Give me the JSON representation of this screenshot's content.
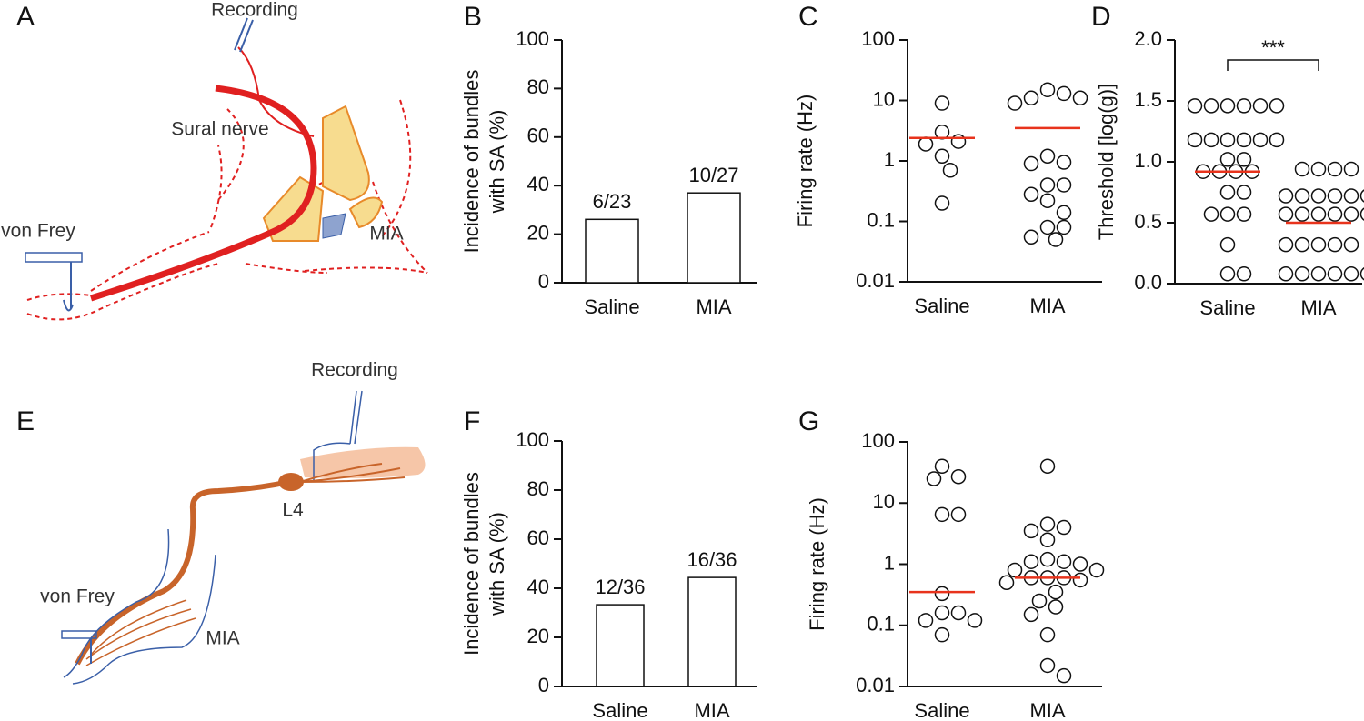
{
  "diagrams": [
    {
      "letter": "A",
      "recording": "Recording",
      "nerve": "Sural nerve",
      "stimulus": "von Frey",
      "injection": "MIA"
    },
    {
      "letter": "E",
      "recording": "Recording",
      "ganglion": "L4",
      "stimulus": "von Frey",
      "injection": "MIA"
    }
  ],
  "chart_data": [
    {
      "type": "bar",
      "letter": "B",
      "ylabel": [
        "Incidence of bundles",
        "with SA (%)"
      ],
      "categories": [
        "Saline",
        "MIA"
      ],
      "values": [
        26.1,
        37.0
      ],
      "value_labels": [
        "6/23",
        "10/27"
      ],
      "color": "#ffffff",
      "ylim": [
        0,
        100
      ],
      "yticks": [
        0,
        20,
        40,
        60,
        80,
        100
      ]
    },
    {
      "type": "scatter",
      "letter": "C",
      "ylabel": [
        "Firing rate (Hz)"
      ],
      "log": true,
      "categories": [
        "Saline",
        "MIA"
      ],
      "groups": [
        {
          "values": [
            9,
            3,
            2.1,
            1.9,
            1.2,
            0.7,
            0.2
          ],
          "mean": 2.4
        },
        {
          "values": [
            15,
            13,
            11,
            11,
            9,
            1.2,
            0.95,
            0.9,
            0.4,
            0.4,
            0.28,
            0.22,
            0.14,
            0.08,
            0.08,
            0.055,
            0.05
          ],
          "mean": 3.5
        }
      ],
      "mean_color": "#e8331c",
      "ylim": [
        0.01,
        100
      ],
      "yticks": [
        0.01,
        0.1,
        1,
        10,
        100
      ]
    },
    {
      "type": "scatter",
      "letter": "D",
      "ylabel": [
        "Threshold [log(g)]"
      ],
      "categories": [
        "Saline",
        "MIA"
      ],
      "groups": [
        {
          "values": [
            1.46,
            1.46,
            1.46,
            1.46,
            1.46,
            1.46,
            1.18,
            1.18,
            1.18,
            1.18,
            1.18,
            1.18,
            1.02,
            1.02,
            0.92,
            0.92,
            0.92,
            0.92,
            0.75,
            0.75,
            0.57,
            0.57,
            0.57,
            0.32,
            0.08,
            0.08
          ],
          "mean": 0.92
        },
        {
          "values": [
            0.94,
            0.94,
            0.94,
            0.94,
            0.72,
            0.72,
            0.72,
            0.72,
            0.72,
            0.72,
            0.57,
            0.57,
            0.57,
            0.57,
            0.57,
            0.57,
            0.32,
            0.32,
            0.32,
            0.32,
            0.32,
            0.08,
            0.08,
            0.08,
            0.08,
            0.08,
            0.08
          ],
          "mean": 0.5
        }
      ],
      "annotation": "***",
      "mean_color": "#e8331c",
      "ylim": [
        0,
        2
      ],
      "yticks": [
        {
          "value": 0,
          "label": "0.0"
        },
        0.5,
        {
          "value": 1,
          "label": "1.0"
        },
        1.5,
        {
          "value": 2,
          "label": "2.0"
        }
      ]
    },
    {
      "type": "bar",
      "letter": "F",
      "ylabel": [
        "Incidence of bundles",
        "with SA (%)"
      ],
      "categories": [
        "Saline",
        "MIA"
      ],
      "values": [
        33.3,
        44.4
      ],
      "value_labels": [
        "12/36",
        "16/36"
      ],
      "color": "#ffffff",
      "ylim": [
        0,
        100
      ],
      "yticks": [
        0,
        20,
        40,
        60,
        80,
        100
      ]
    },
    {
      "type": "scatter",
      "letter": "G",
      "ylabel": [
        "Firing rate (Hz)"
      ],
      "log": true,
      "categories": [
        "Saline",
        "MIA"
      ],
      "groups": [
        {
          "values": [
            40,
            27,
            25,
            6.5,
            6.5,
            0.33,
            0.16,
            0.16,
            0.12,
            0.12,
            0.07
          ],
          "mean": 0.35
        },
        {
          "values": [
            40,
            4.5,
            4,
            3.5,
            2.5,
            1.2,
            1.1,
            1.1,
            1,
            0.8,
            0.8,
            0.6,
            0.6,
            0.6,
            0.55,
            0.5,
            0.35,
            0.25,
            0.2,
            0.15,
            0.07,
            0.022,
            0.015
          ],
          "mean": 0.6
        }
      ],
      "mean_color": "#e8331c",
      "ylim": [
        0.01,
        100
      ],
      "yticks": [
        0.01,
        0.1,
        1,
        10,
        100
      ]
    }
  ]
}
